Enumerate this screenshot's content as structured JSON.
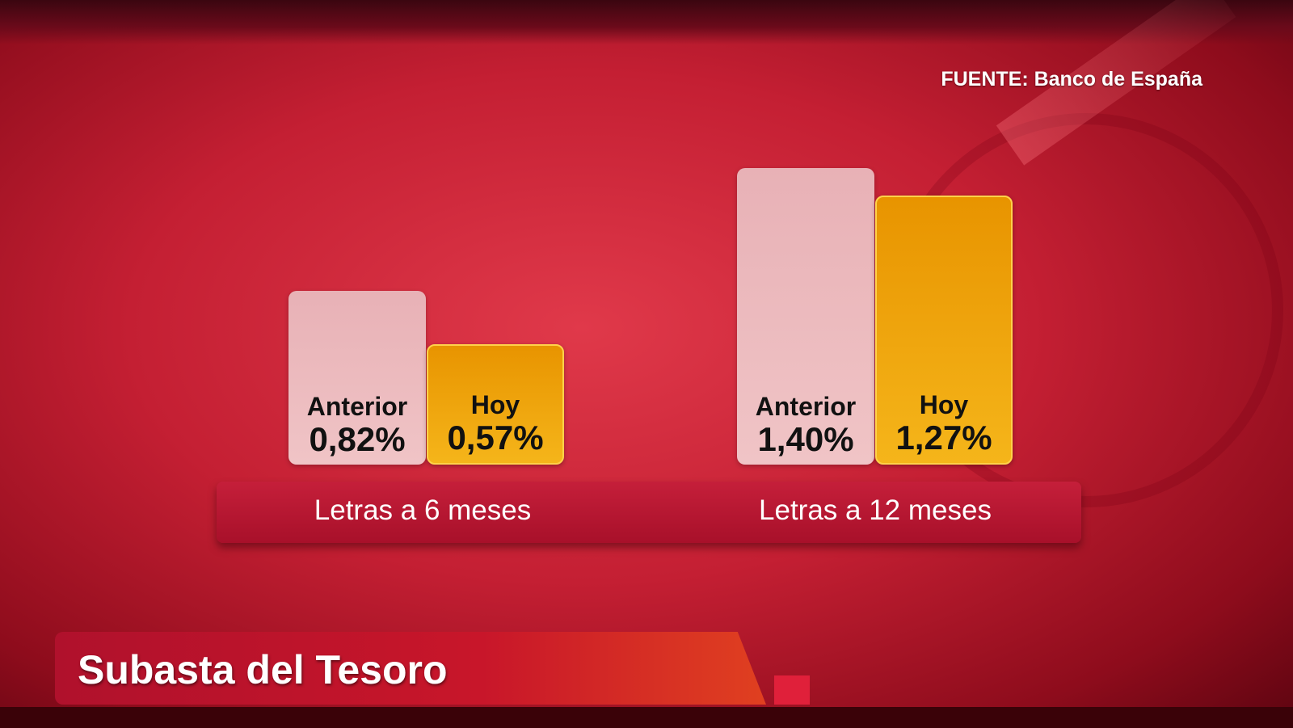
{
  "source": "FUENTE: Banco de España",
  "title": "Subasta del Tesoro",
  "colors": {
    "anterior": "#f0c4c6",
    "hoy": "#f5b51a",
    "background": "#c41f33"
  },
  "chart_data": {
    "type": "bar",
    "categories": [
      "Letras a 6 meses",
      "Letras a 12 meses"
    ],
    "series": [
      {
        "name": "Anterior",
        "values": [
          0.82,
          1.4
        ],
        "labels": [
          "0,82%",
          "1,40%"
        ]
      },
      {
        "name": "Hoy",
        "values": [
          0.57,
          1.27
        ],
        "labels": [
          "0,57%",
          "1,27%"
        ]
      }
    ],
    "unit": "%"
  }
}
